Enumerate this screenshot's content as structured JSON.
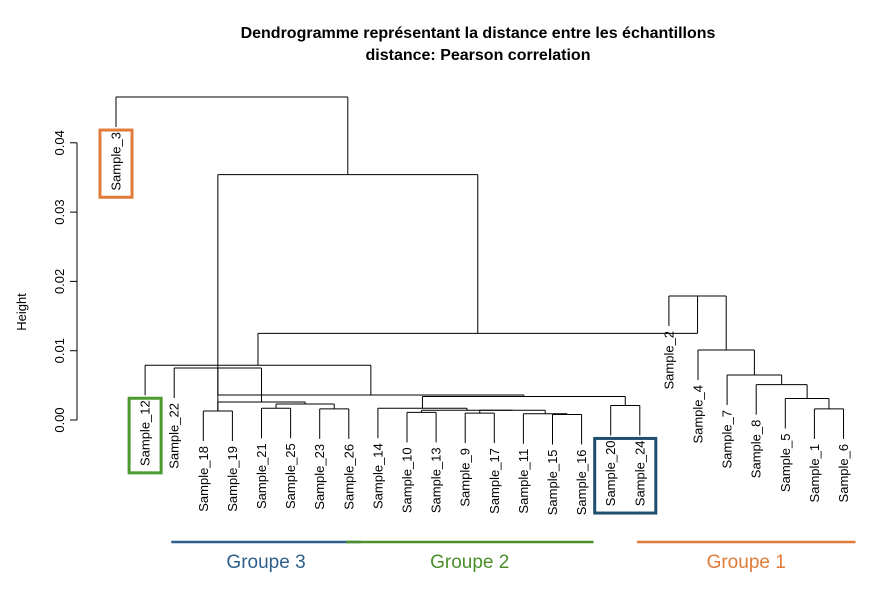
{
  "chart_data": {
    "type": "dendrogram",
    "title": "Dendrogramme représentant la distance entre les échantillons",
    "subtitle": "distance: Pearson  correlation",
    "ylabel": "Height",
    "ylim": [
      0,
      0.045
    ],
    "yticks": [
      "0.00",
      "0.01",
      "0.02",
      "0.03",
      "0.04"
    ],
    "yticks_values": [
      0,
      0.01,
      0.02,
      0.03,
      0.04
    ],
    "leaves": [
      "Sample_3",
      "Sample_12",
      "Sample_22",
      "Sample_18",
      "Sample_19",
      "Sample_21",
      "Sample_25",
      "Sample_23",
      "Sample_26",
      "Sample_14",
      "Sample_10",
      "Sample_13",
      "Sample_9",
      "Sample_17",
      "Sample_11",
      "Sample_15",
      "Sample_16",
      "Sample_20",
      "Sample_24",
      "Sample_2",
      "Sample_4",
      "Sample_7",
      "Sample_8",
      "Sample_5",
      "Sample_1",
      "Sample_6"
    ],
    "merges": [
      {
        "a": "Sample_18",
        "b": "Sample_19",
        "height": 0.0013
      },
      {
        "a": "Sample_21",
        "b": "Sample_25",
        "height": 0.0017
      },
      {
        "a": "Sample_23",
        "b": "Sample_26",
        "height": 0.0016
      },
      {
        "a": 1,
        "b": 2,
        "height": 0.0023
      },
      {
        "a": 0,
        "b": 3,
        "height": 0.0026
      },
      {
        "a": "Sample_22",
        "b": 4,
        "height": 0.0075
      },
      {
        "a": "Sample_10",
        "b": "Sample_13",
        "height": 0.0011
      },
      {
        "a": "Sample_9",
        "b": "Sample_17",
        "height": 0.001
      },
      {
        "a": "Sample_15",
        "b": "Sample_16",
        "height": 0.0008
      },
      {
        "a": "Sample_11",
        "b": 8,
        "height": 0.0009
      },
      {
        "a": 7,
        "b": 9,
        "height": 0.0014
      },
      {
        "a": 6,
        "b": 10,
        "height": 0.0014
      },
      {
        "a": "Sample_14",
        "b": 11,
        "height": 0.0017
      },
      {
        "a": "Sample_20",
        "b": "Sample_24",
        "height": 0.0021
      },
      {
        "a": 12,
        "b": 13,
        "height": 0.0034
      },
      {
        "a": 5,
        "b": 14,
        "height": 0.0036
      },
      {
        "a": "Sample_12",
        "b": 15,
        "height": 0.0079
      },
      {
        "a": "Sample_1",
        "b": "Sample_6",
        "height": 0.0016
      },
      {
        "a": "Sample_5",
        "b": 17,
        "height": 0.0031
      },
      {
        "a": "Sample_8",
        "b": 18,
        "height": 0.0051
      },
      {
        "a": "Sample_7",
        "b": 19,
        "height": 0.0065
      },
      {
        "a": "Sample_4",
        "b": 20,
        "height": 0.0101
      },
      {
        "a": "Sample_2",
        "b": 21,
        "height": 0.0179
      },
      {
        "a": 16,
        "b": 22,
        "height": 0.0125
      },
      {
        "a": 23,
        "b": 0,
        "height": 0.0354
      },
      {
        "a": "Sample_3",
        "b": 24,
        "height": 0.0466
      }
    ],
    "groups": [
      {
        "label": "Groupe 3",
        "color": "#2e5f8a",
        "from": "Sample_18",
        "to": "Sample_26"
      },
      {
        "label": "Groupe 2",
        "color": "#4a8f2a",
        "from": "Sample_14",
        "to": "Sample_16"
      },
      {
        "label": "Groupe 1",
        "color": "#e07b39",
        "from": "Sample_2",
        "to": "Sample_6"
      }
    ],
    "highlight_boxes": [
      {
        "leaves": [
          "Sample_3"
        ],
        "color": "#e07b39"
      },
      {
        "leaves": [
          "Sample_12"
        ],
        "color": "#4a9a2f"
      },
      {
        "leaves": [
          "Sample_20",
          "Sample_24"
        ],
        "color": "#1f4e6e"
      }
    ]
  }
}
